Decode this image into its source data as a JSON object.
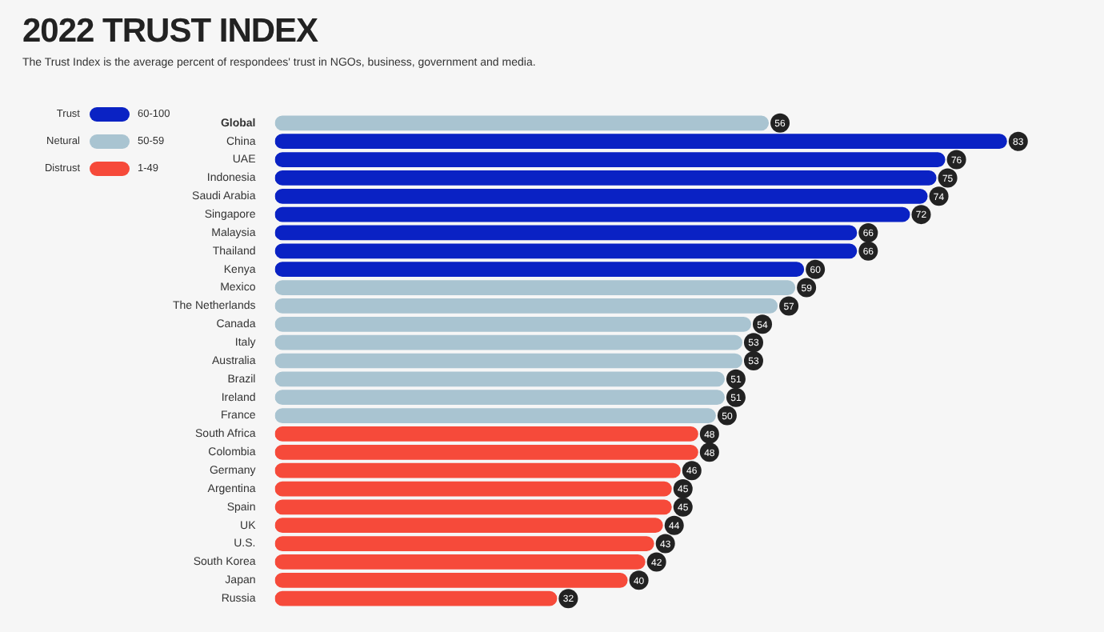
{
  "chart_data": {
    "type": "bar",
    "orientation": "horizontal",
    "stacked": true,
    "title": "2022 TRUST INDEX",
    "subtitle": "The Trust Index is the average percent of respondees' trust in NGOs, business, government and media.",
    "categories": [
      "Global",
      "China",
      "UAE",
      "Indonesia",
      "Saudi Arabia",
      "Singapore",
      "Malaysia",
      "Thailand",
      "Kenya",
      "Mexico",
      "The Netherlands",
      "Canada",
      "Italy",
      "Australia",
      "Brazil",
      "Ireland",
      "France",
      "South Africa",
      "Colombia",
      "Germany",
      "Argentina",
      "Spain",
      "UK",
      "U.S.",
      "South Korea",
      "Japan",
      "Russia"
    ],
    "series": [
      {
        "name": "Trust",
        "color": "#0a22c4",
        "values": [
          null,
          83,
          76,
          75,
          74,
          72,
          66,
          66,
          60,
          null,
          null,
          null,
          null,
          null,
          null,
          null,
          null,
          null,
          null,
          null,
          null,
          null,
          null,
          null,
          null,
          null,
          null
        ]
      },
      {
        "name": "Netural",
        "color": "#a9c4d1",
        "values": [
          56,
          null,
          null,
          null,
          null,
          null,
          null,
          null,
          null,
          59,
          57,
          54,
          53,
          53,
          51,
          51,
          50,
          null,
          null,
          null,
          null,
          null,
          null,
          null,
          null,
          null,
          null
        ]
      },
      {
        "name": "Distrust",
        "color": "#f64a3a",
        "values": [
          null,
          null,
          null,
          null,
          null,
          null,
          null,
          null,
          null,
          null,
          null,
          null,
          null,
          null,
          null,
          null,
          null,
          48,
          48,
          46,
          45,
          45,
          44,
          43,
          42,
          40,
          32
        ]
      }
    ],
    "annotations": [
      "60-100",
      "50-59",
      "1-49"
    ],
    "data_labels": true,
    "legend": "top left"
  }
}
